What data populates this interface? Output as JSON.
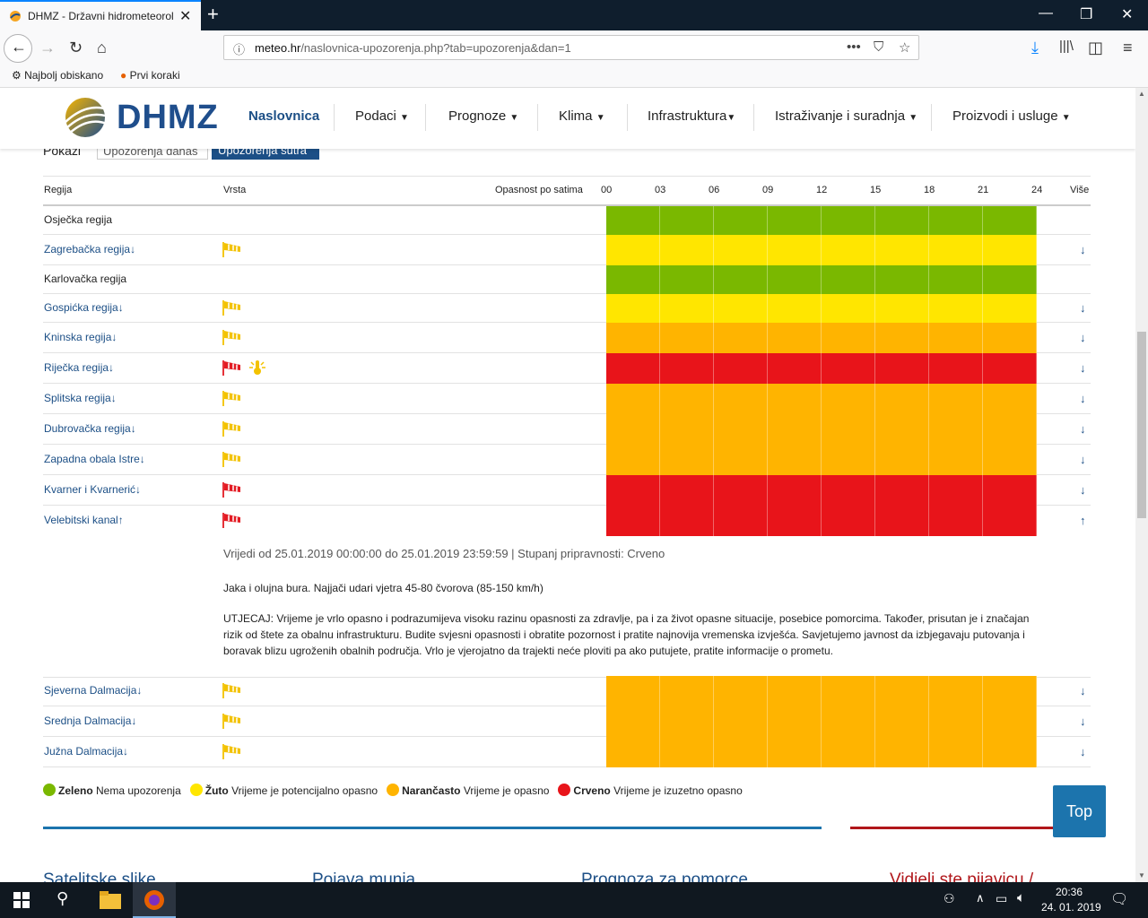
{
  "browser": {
    "tab_title": "DHMZ - Državni hidrometeorol",
    "url_host": "meteo.hr",
    "url_path": "/naslovnica-upozorenja.php?tab=upozorenja&dan=1",
    "bookmarks": [
      "Najbolj obiskano",
      "Prvi koraki"
    ]
  },
  "site": {
    "logo_text": "DHMZ",
    "menu": [
      "Naslovnica",
      "Podaci",
      "Prognoze",
      "Klima",
      "Infrastruktura",
      "Istraživanje i suradnja",
      "Proizvodi i usluge"
    ]
  },
  "subtabs": {
    "label": "Pokazi",
    "today": "Upozorenja danas",
    "tomorrow": "Upozorenja sutra"
  },
  "table": {
    "headers": {
      "region": "Regija",
      "type": "Vrsta",
      "danger": "Opasnost po satima",
      "more": "Više"
    },
    "hours": [
      "00",
      "03",
      "06",
      "09",
      "12",
      "15",
      "18",
      "21",
      "24"
    ],
    "rows": [
      {
        "name": "Osječka regija",
        "level": "green",
        "icons": [],
        "link": false
      },
      {
        "name": "Zagrebačka regija",
        "level": "yellow",
        "icons": [
          "wind-yellow"
        ],
        "link": true,
        "arrow": "↓"
      },
      {
        "name": "Karlovačka regija",
        "level": "green",
        "icons": [],
        "link": false
      },
      {
        "name": "Gospićka regija",
        "level": "yellow",
        "icons": [
          "wind-yellow"
        ],
        "link": true,
        "arrow": "↓"
      },
      {
        "name": "Kninska regija",
        "level": "orange",
        "icons": [
          "wind-yellow"
        ],
        "link": true,
        "arrow": "↓"
      },
      {
        "name": "Riječka regija",
        "level": "red",
        "icons": [
          "wind-red",
          "thermo-yellow"
        ],
        "link": true,
        "arrow": "↓"
      },
      {
        "name": "Splitska regija",
        "level": "orange",
        "icons": [
          "wind-yellow"
        ],
        "link": true,
        "arrow": "↓"
      },
      {
        "name": "Dubrovačka regija",
        "level": "orange",
        "icons": [
          "wind-yellow"
        ],
        "link": true,
        "arrow": "↓"
      },
      {
        "name": "Zapadna obala Istre",
        "level": "orange",
        "icons": [
          "wind-yellow"
        ],
        "link": true,
        "arrow": "↓"
      },
      {
        "name": "Kvarner i Kvarnerić",
        "level": "red",
        "icons": [
          "wind-red"
        ],
        "link": true,
        "arrow": "↓"
      },
      {
        "name": "Velebitski kanal",
        "level": "red",
        "icons": [
          "wind-red"
        ],
        "link": true,
        "arrow": "↑"
      },
      {
        "name": "Sjeverna Dalmacija",
        "level": "orange",
        "icons": [
          "wind-yellow"
        ],
        "link": true,
        "arrow": "↓"
      },
      {
        "name": "Srednja Dalmacija",
        "level": "orange",
        "icons": [
          "wind-yellow"
        ],
        "link": true,
        "arrow": "↓"
      },
      {
        "name": "Južna Dalmacija",
        "level": "orange",
        "icons": [
          "wind-yellow"
        ],
        "link": true,
        "arrow": "↓"
      }
    ]
  },
  "detail": {
    "validity": "Vrijedi od 25.01.2019 00:00:00 do 25.01.2019 23:59:59 | Stupanj pripravnosti: Crveno",
    "summary": "Jaka i olujna bura. Najjači udari vjetra 45-80 čvorova (85-150 km/h)",
    "impact": "UTJECAJ: Vrijeme je vrlo opasno i podrazumijeva visoku razinu opasnosti za zdravlje, pa i za život opasne situacije, posebice pomorcima. Također, prisutan je i značajan rizik od štete za obalnu infrastrukturu. Budite svjesni opasnosti i obratite pozornost i pratite najnovija vremenska izvješća. Savjetujemo javnost da izbjegavaju putovanja i boravak blizu ugroženih obalnih područja. Vrlo je vjerojatno da trajekti neće ploviti pa ako putujete, pratite informacije o prometu."
  },
  "legend": [
    {
      "key": "Zeleno",
      "text": "Nema upozorenja",
      "color": "#7ab800"
    },
    {
      "key": "Žuto",
      "text": "Vrijeme je potencijalno opasno",
      "color": "#ffe600"
    },
    {
      "key": "Narančasto",
      "text": "Vrijeme je opasno",
      "color": "#ffb400"
    },
    {
      "key": "Crveno",
      "text": "Vrijeme je izuzetno opasno",
      "color": "#e8141a"
    }
  ],
  "colors": {
    "green": "#7ab800",
    "yellow": "#ffe600",
    "orange": "#ffb400",
    "red": "#e8141a"
  },
  "top_button": "Top",
  "footer_titles": [
    "Satelitske slike",
    "Pojava munja",
    "Prognoza za pomorce",
    "Vidjeli ste pijavicu /"
  ],
  "taskbar": {
    "time": "20:36",
    "date": "24. 01. 2019"
  }
}
